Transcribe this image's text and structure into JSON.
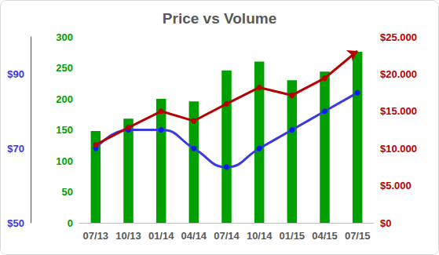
{
  "chart_data": {
    "type": "bar",
    "title": "Price vs Volume",
    "categories": [
      "07/13",
      "10/13",
      "01/14",
      "04/14",
      "07/14",
      "10/14",
      "01/15",
      "04/15",
      "07/15"
    ],
    "series": [
      {
        "type": "bar",
        "color": "#00a000",
        "axis": "y",
        "values": [
          148,
          168,
          200,
          196,
          246,
          260,
          230,
          244,
          276
        ]
      },
      {
        "type": "line",
        "color": "#3a3ae0",
        "axis": "y3",
        "marker": "circle",
        "line_style": "smooth",
        "values": [
          70,
          75,
          75,
          70,
          65,
          70,
          75,
          80,
          85
        ]
      },
      {
        "type": "line",
        "color": "#b80000",
        "axis": "y2",
        "marker": "circle",
        "line_style": "solid",
        "values": [
          10500,
          12800,
          15000,
          13700,
          16000,
          18200,
          17150,
          19450,
          23100
        ]
      }
    ],
    "ylim": [
      0,
      300
    ],
    "yticks": [
      0,
      50,
      100,
      150,
      200,
      250,
      300
    ],
    "y3lim": [
      50,
      100
    ],
    "y3ticks": [
      {
        "value": 50,
        "label": "$50"
      },
      {
        "value": 70,
        "label": "$70"
      },
      {
        "value": 90,
        "label": "$90"
      }
    ],
    "y2lim": [
      0,
      25000
    ],
    "y2ticks": [
      {
        "value": 0,
        "label": "$0"
      },
      {
        "value": 5000,
        "label": "$5.000"
      },
      {
        "value": 10000,
        "label": "$10.000"
      },
      {
        "value": 15000,
        "label": "$15.000"
      },
      {
        "value": 20000,
        "label": "$20.000"
      },
      {
        "value": 25000,
        "label": "$25.000"
      }
    ],
    "grid": false
  }
}
